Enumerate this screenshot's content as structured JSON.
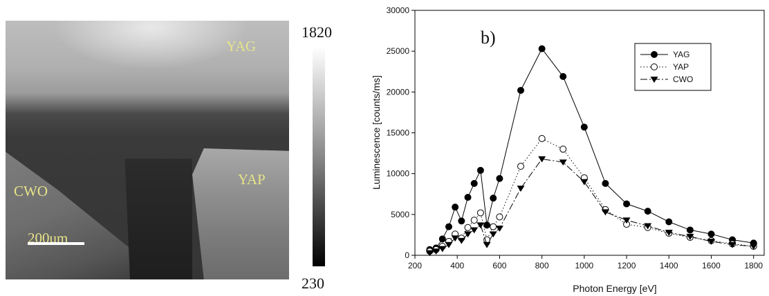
{
  "image_panel": {
    "labels": {
      "yag": "YAG",
      "yap": "YAP",
      "cwo": "CWO",
      "scale": "200um"
    },
    "colorbar": {
      "max": "1820",
      "min": "230"
    }
  },
  "chart_data": {
    "type": "line",
    "panel_label": "b)",
    "xlabel": "Photon Energy [eV]",
    "ylabel": "Luminescence [counts/ms]",
    "xlim": [
      200,
      1850
    ],
    "ylim": [
      0,
      30000
    ],
    "xticks": [
      200,
      400,
      600,
      800,
      1000,
      1200,
      1400,
      1600,
      1800
    ],
    "yticks": [
      0,
      5000,
      10000,
      15000,
      20000,
      25000,
      30000
    ],
    "legend_position": "top-right",
    "series": [
      {
        "name": "YAG",
        "marker": "filled-circle",
        "line": "solid",
        "x": [
          270,
          300,
          330,
          360,
          390,
          420,
          450,
          480,
          510,
          540,
          570,
          600,
          700,
          800,
          900,
          1000,
          1100,
          1200,
          1300,
          1400,
          1500,
          1600,
          1700,
          1800
        ],
        "y": [
          700,
          900,
          2000,
          3500,
          5900,
          4200,
          7100,
          8800,
          10400,
          3700,
          7000,
          9400,
          20200,
          25300,
          21900,
          15700,
          8800,
          6300,
          5400,
          4100,
          3100,
          2600,
          1900,
          1500
        ]
      },
      {
        "name": "YAP",
        "marker": "open-circle",
        "line": "dotted",
        "x": [
          270,
          300,
          330,
          360,
          390,
          420,
          450,
          480,
          510,
          540,
          570,
          600,
          700,
          800,
          900,
          1000,
          1100,
          1200,
          1300,
          1400,
          1500,
          1600,
          1700,
          1800
        ],
        "y": [
          500,
          700,
          1100,
          1700,
          2600,
          2100,
          3400,
          4300,
          5200,
          1900,
          3500,
          4700,
          10900,
          14300,
          13000,
          9500,
          5600,
          3800,
          3400,
          2700,
          2200,
          1800,
          1400,
          1100
        ]
      },
      {
        "name": "CWO",
        "marker": "filled-triangle-down",
        "line": "dashdot",
        "x": [
          270,
          300,
          330,
          360,
          390,
          420,
          450,
          480,
          510,
          540,
          570,
          600,
          700,
          800,
          900,
          1000,
          1100,
          1200,
          1300,
          1400,
          1500,
          1600,
          1700,
          1800
        ],
        "y": [
          300,
          500,
          800,
          1300,
          2100,
          1800,
          2600,
          3100,
          3700,
          1300,
          2600,
          3300,
          8200,
          11800,
          11400,
          9000,
          5300,
          4300,
          3600,
          2800,
          2300,
          1700,
          1300,
          1100
        ]
      }
    ]
  }
}
